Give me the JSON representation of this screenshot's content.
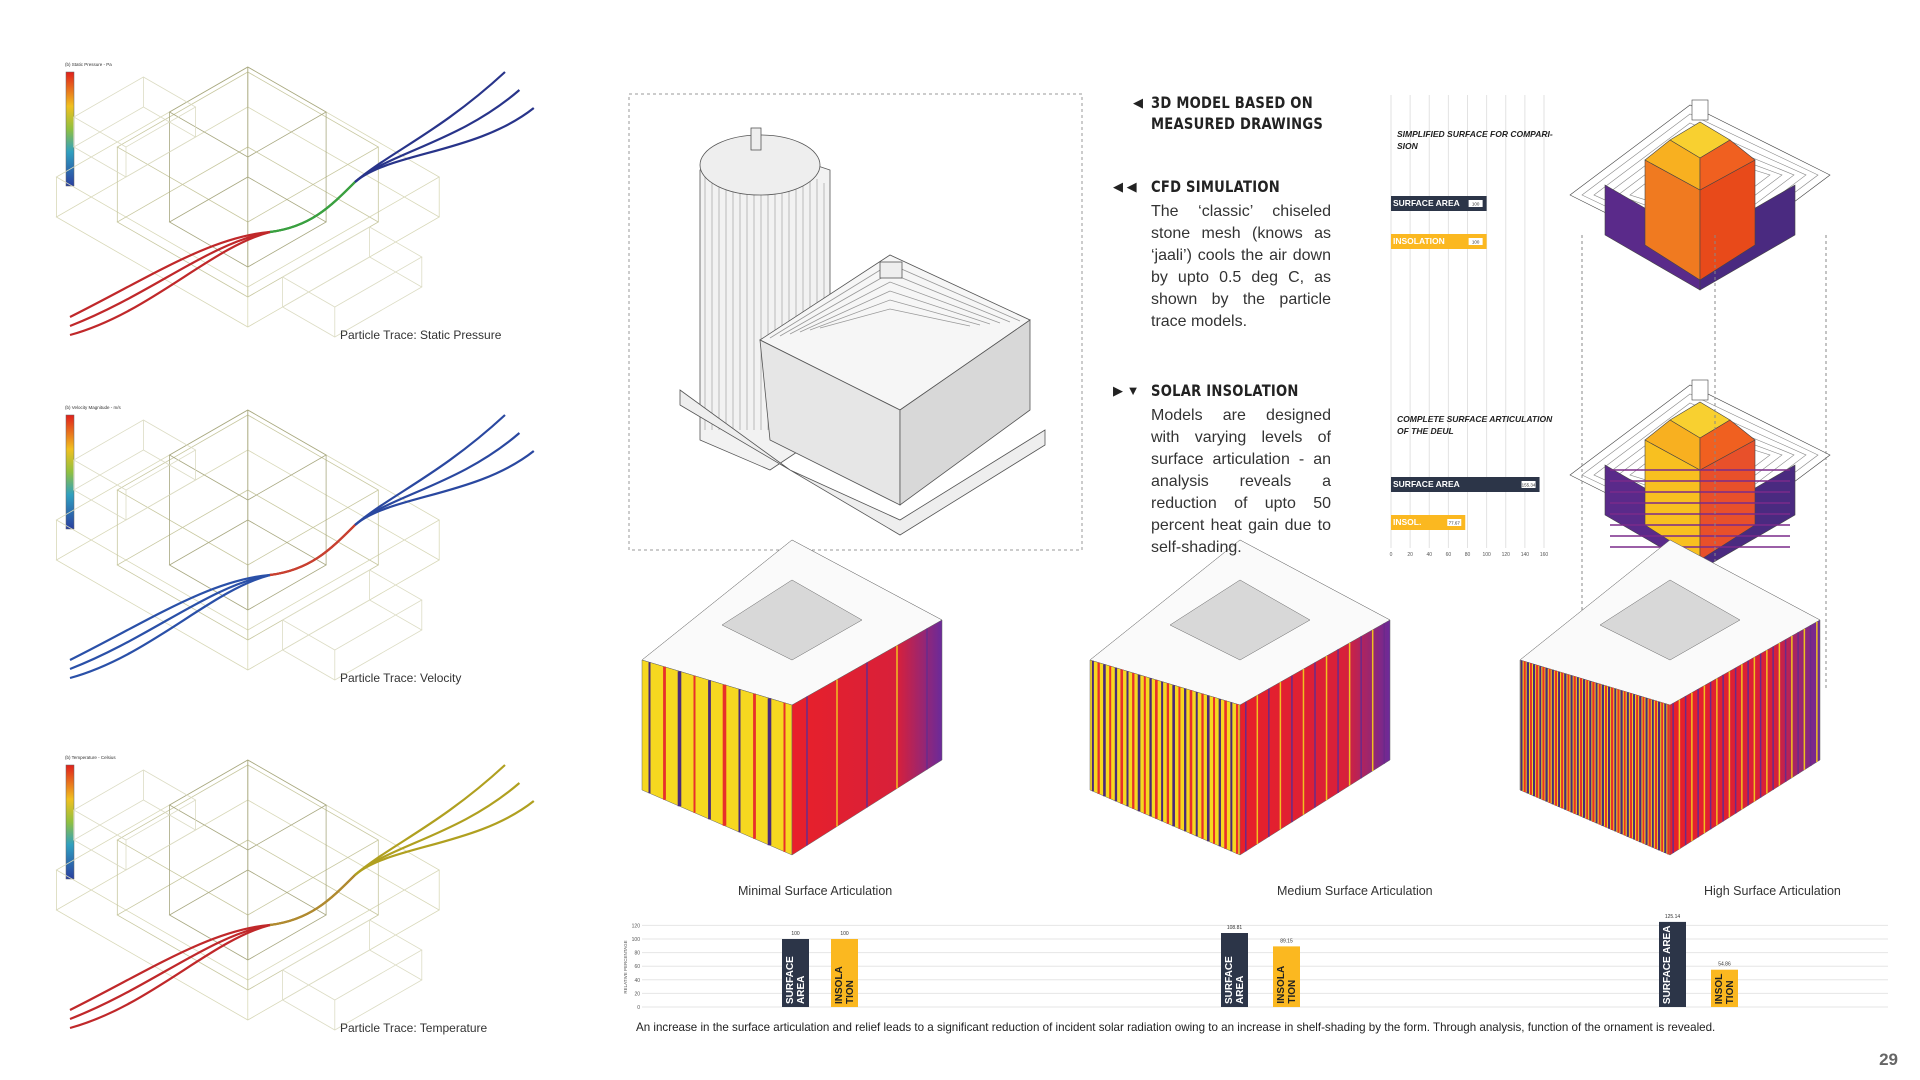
{
  "particle_traces": [
    {
      "legend_title": "(b) Static Pressure - Pa",
      "caption": "Particle Trace: Static Pressure"
    },
    {
      "legend_title": "(b) Velocity Magnitude - m/s",
      "caption": "Particle Trace: Velocity"
    },
    {
      "legend_title": "(b) Temperature - Celsius",
      "caption": "Particle Trace: Temperature"
    }
  ],
  "notes": [
    {
      "heading": "3D MODEL BASED ON\nMEASURED DRAWINGS"
    },
    {
      "heading": "CFD SIMULATION",
      "body": "The ‘classic’ chiseled stone mesh (knows as ‘jaali’) cools the air down by upto 0.5 deg C, as shown by the particle trace models."
    },
    {
      "heading": "SOLAR INSOLATION",
      "body": "Models are designed with varying levels of surface articulation - an analysis reveals a reduction of upto 50 percent heat gain due to self-shading."
    }
  ],
  "comparison": {
    "groups": [
      {
        "title": "SIMPLIFIED SURFACE FOR COMPARI-SION",
        "bars": [
          {
            "label": "SURFACE AREA",
            "value": 100
          },
          {
            "label": "INSOLATION",
            "value": 100
          }
        ]
      },
      {
        "title": "COMPLETE SURFACE ARTICULATION OF THE DEUL",
        "bars": [
          {
            "label": "SURFACE AREA",
            "value": 155.34
          },
          {
            "label": "INSOL.",
            "value": 77.67
          }
        ]
      }
    ],
    "ticks": [
      0,
      20,
      40,
      60,
      80,
      100,
      120,
      140,
      160
    ]
  },
  "models": [
    {
      "caption": "Minimal Surface Articulation",
      "bars": [
        {
          "label": "SURFACE AREA",
          "value": 100
        },
        {
          "label": "INSOLA TION",
          "value": 100
        }
      ]
    },
    {
      "caption": "Medium Surface Articulation",
      "bars": [
        {
          "label": "SURFACE AREA",
          "value": 108.81
        },
        {
          "label": "INSOLA TION",
          "value": 89.15
        }
      ]
    },
    {
      "caption": "High Surface Articulation",
      "bars": [
        {
          "label": "SURFACE AREA",
          "value": 125.14
        },
        {
          "label": "INSOLA TION",
          "value": 54.86
        }
      ]
    }
  ],
  "relative_axis": {
    "label": "RELATIVE PERCENTAGE",
    "ticks": [
      0,
      20,
      40,
      60,
      80,
      100,
      120
    ]
  },
  "footer": "An increase in the surface articulation and relief leads to a significant reduction of incident solar radiation owing to an increase in shelf-shading by the form. Through analysis, function of the ornament is revealed.",
  "page_number": "29"
}
